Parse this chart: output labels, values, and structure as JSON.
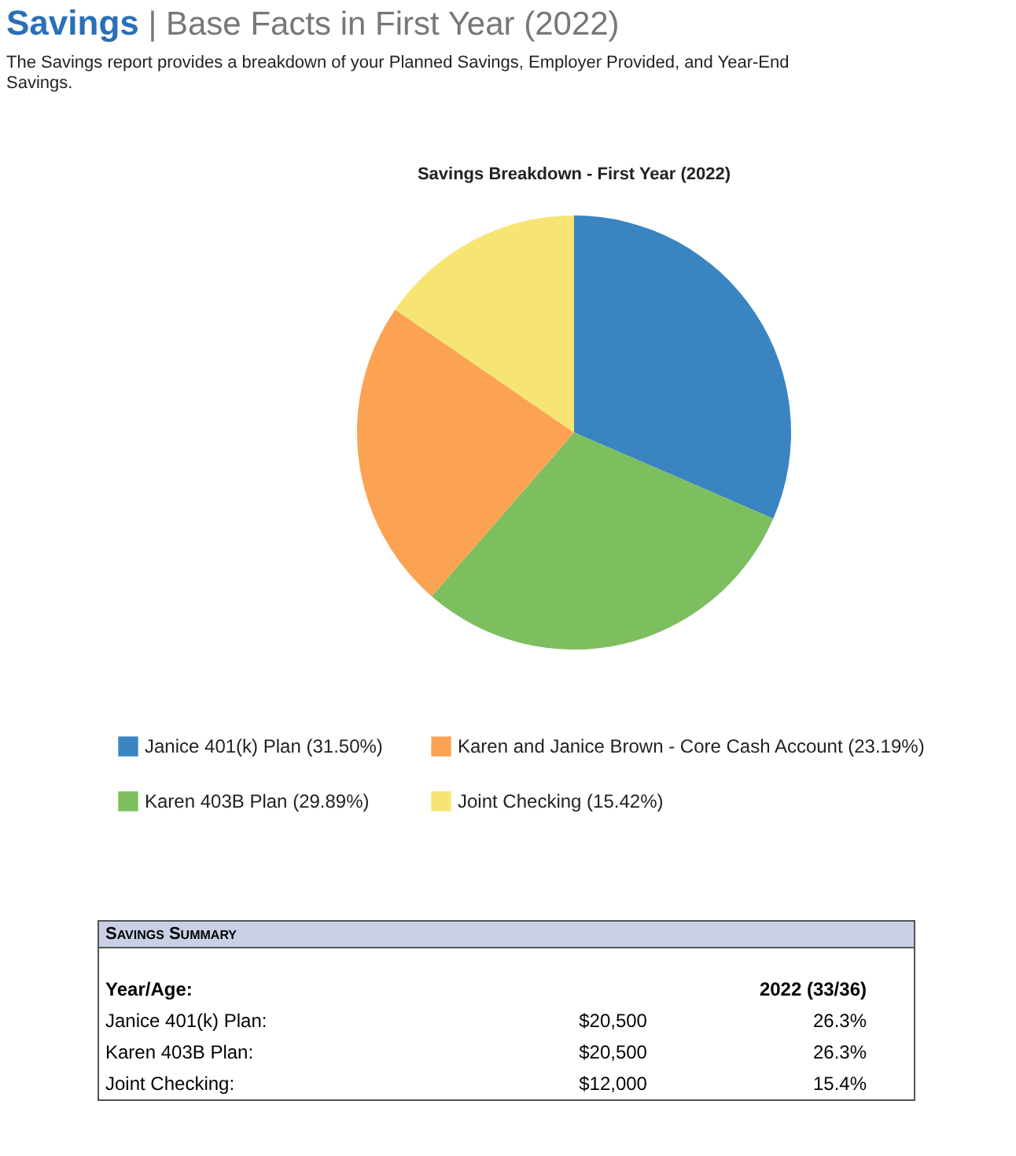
{
  "chart_data": {
    "type": "pie",
    "title": "Savings Breakdown - First Year (2022)",
    "categories": [
      "Janice 401(k) Plan (31.50%)",
      "Karen 403B Plan (29.89%)",
      "Karen and Janice Brown - Core Cash Account (23.19%)",
      "Joint Checking (15.42%)"
    ],
    "values": [
      31.5,
      29.89,
      23.19,
      15.42
    ],
    "colors": [
      "#3a84c1",
      "#7dbe5f",
      "#fba353",
      "#f7e573"
    ],
    "legend": "bottom",
    "annotations": [
      "Savings",
      "| Base Facts in First Year (2022)",
      "The Savings report provides a breakdown of your Planned Savings, Employer Provided, and Year-End Savings.",
      "Savings Summary",
      "Year/Age:",
      "2022 (33/36)",
      "Janice 401(k) Plan:",
      "$20,500",
      "26.3%",
      "Karen 403B Plan:",
      "$20,500",
      "26.3%",
      "Joint Checking:",
      "$12,000",
      "15.4%"
    ]
  }
}
